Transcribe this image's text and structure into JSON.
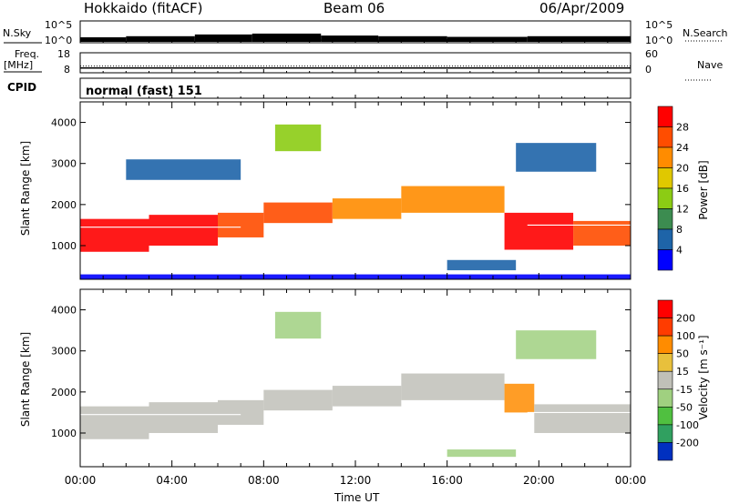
{
  "header": {
    "station": "Hokkaido (fitACF)",
    "beam": "Beam 06",
    "date": "06/Apr/2009"
  },
  "noise_panel": {
    "left_label": "N.Sky",
    "right_label": "N.Search",
    "left_ticks": [
      "10^5",
      "10^0"
    ],
    "right_ticks": [
      "10^5",
      "10^0"
    ],
    "sky_segments": [
      {
        "start": 0.0,
        "end": 2.0,
        "level": 0.25
      },
      {
        "start": 2.0,
        "end": 5.0,
        "level": 0.3
      },
      {
        "start": 5.0,
        "end": 7.5,
        "level": 0.38
      },
      {
        "start": 7.5,
        "end": 10.5,
        "level": 0.42
      },
      {
        "start": 10.5,
        "end": 13.0,
        "level": 0.33
      },
      {
        "start": 13.0,
        "end": 16.0,
        "level": 0.3
      },
      {
        "start": 16.0,
        "end": 19.5,
        "level": 0.27
      },
      {
        "start": 19.5,
        "end": 24.0,
        "level": 0.3
      }
    ],
    "search_level": 0.12
  },
  "freq_panel": {
    "left_label_1": "Freq.",
    "left_label_2": "[MHz]",
    "right_label": "Nave",
    "left_ticks": [
      "18",
      "8"
    ],
    "right_ticks": [
      "60",
      "0"
    ],
    "freq_mhz": 10.4,
    "freq_range": [
      8,
      18
    ],
    "nave": 20,
    "nave_range": [
      0,
      60
    ]
  },
  "cpid": {
    "label": "CPID",
    "text": "normal (fast) 151"
  },
  "x_axis": {
    "label": "Time UT",
    "range_hours": [
      0,
      24
    ],
    "ticks": [
      "00:00",
      "04:00",
      "08:00",
      "12:00",
      "16:00",
      "20:00",
      "00:00"
    ]
  },
  "chart_data": [
    {
      "type": "heatmap",
      "name": "Power",
      "ylabel": "Slant Range [km]",
      "ylim_km": [
        180,
        4500
      ],
      "yticks": [
        "1000",
        "2000",
        "3000",
        "4000"
      ],
      "colorbar_label": "Power [dB]",
      "colorbar_ticks": [
        "28",
        "24",
        "20",
        "16",
        "12",
        "8",
        "4"
      ],
      "colorbar_colors": [
        "#ff0000",
        "#ff4d00",
        "#ff8c00",
        "#e0c800",
        "#8ccc14",
        "#3c8c50",
        "#1e64a8",
        "#0000ff"
      ],
      "regions": [
        {
          "t0": 0.0,
          "t1": 3.0,
          "r0": 850,
          "r1": 1650,
          "level": 7
        },
        {
          "t0": 3.0,
          "t1": 6.0,
          "r0": 1000,
          "r1": 1750,
          "level": 7
        },
        {
          "t0": 6.0,
          "t1": 8.0,
          "r0": 1200,
          "r1": 1800,
          "level": 6
        },
        {
          "t0": 8.0,
          "t1": 11.0,
          "r0": 1550,
          "r1": 2050,
          "level": 6
        },
        {
          "t0": 11.0,
          "t1": 14.0,
          "r0": 1650,
          "r1": 2150,
          "level": 5
        },
        {
          "t0": 14.0,
          "t1": 18.5,
          "r0": 1800,
          "r1": 2450,
          "level": 5
        },
        {
          "t0": 18.5,
          "t1": 21.5,
          "r0": 900,
          "r1": 1800,
          "level": 7
        },
        {
          "t0": 21.5,
          "t1": 24.0,
          "r0": 1000,
          "r1": 1600,
          "level": 6
        },
        {
          "t0": 8.5,
          "t1": 10.5,
          "r0": 3300,
          "r1": 3950,
          "level": 3
        },
        {
          "t0": 2.0,
          "t1": 7.0,
          "r0": 2600,
          "r1": 3100,
          "level": 1
        },
        {
          "t0": 19.0,
          "t1": 22.5,
          "r0": 2800,
          "r1": 3500,
          "level": 1
        },
        {
          "t0": 16.0,
          "t1": 19.0,
          "r0": 400,
          "r1": 650,
          "level": 1
        },
        {
          "t0": 0.0,
          "t1": 24.0,
          "r0": 180,
          "r1": 300,
          "level": 0
        }
      ]
    },
    {
      "type": "heatmap",
      "name": "Velocity",
      "ylabel": "Slant Range [km]",
      "ylim_km": [
        180,
        4500
      ],
      "yticks": [
        "1000",
        "2000",
        "3000",
        "4000"
      ],
      "colorbar_label": "Velocity [m s⁻¹]",
      "colorbar_ticks": [
        "200",
        "100",
        "50",
        "15",
        "-15",
        "-50",
        "-100",
        "-200"
      ],
      "colorbar_colors": [
        "#ff0000",
        "#ff3c00",
        "#ff8c00",
        "#e8c03c",
        "#c0c0b8",
        "#a0d080",
        "#50c040",
        "#30a060",
        "#0030c0"
      ],
      "regions": [
        {
          "t0": 0.0,
          "t1": 3.0,
          "r0": 850,
          "r1": 1650,
          "level": 4
        },
        {
          "t0": 3.0,
          "t1": 6.0,
          "r0": 1000,
          "r1": 1750,
          "level": 4
        },
        {
          "t0": 6.0,
          "t1": 8.0,
          "r0": 1200,
          "r1": 1800,
          "level": 4
        },
        {
          "t0": 8.0,
          "t1": 11.0,
          "r0": 1550,
          "r1": 2050,
          "level": 4
        },
        {
          "t0": 11.0,
          "t1": 14.0,
          "r0": 1650,
          "r1": 2150,
          "level": 4
        },
        {
          "t0": 14.0,
          "t1": 18.5,
          "r0": 1800,
          "r1": 2450,
          "level": 4
        },
        {
          "t0": 18.5,
          "t1": 19.8,
          "r0": 1500,
          "r1": 2200,
          "level": 6
        },
        {
          "t0": 19.8,
          "t1": 24.0,
          "r0": 1000,
          "r1": 1700,
          "level": 4
        },
        {
          "t0": 8.5,
          "t1": 10.5,
          "r0": 3300,
          "r1": 3950,
          "level": 3
        },
        {
          "t0": 16.0,
          "t1": 19.0,
          "r0": 420,
          "r1": 600,
          "level": 3
        },
        {
          "t0": 19.0,
          "t1": 22.5,
          "r0": 2800,
          "r1": 3500,
          "level": 3
        }
      ]
    }
  ]
}
